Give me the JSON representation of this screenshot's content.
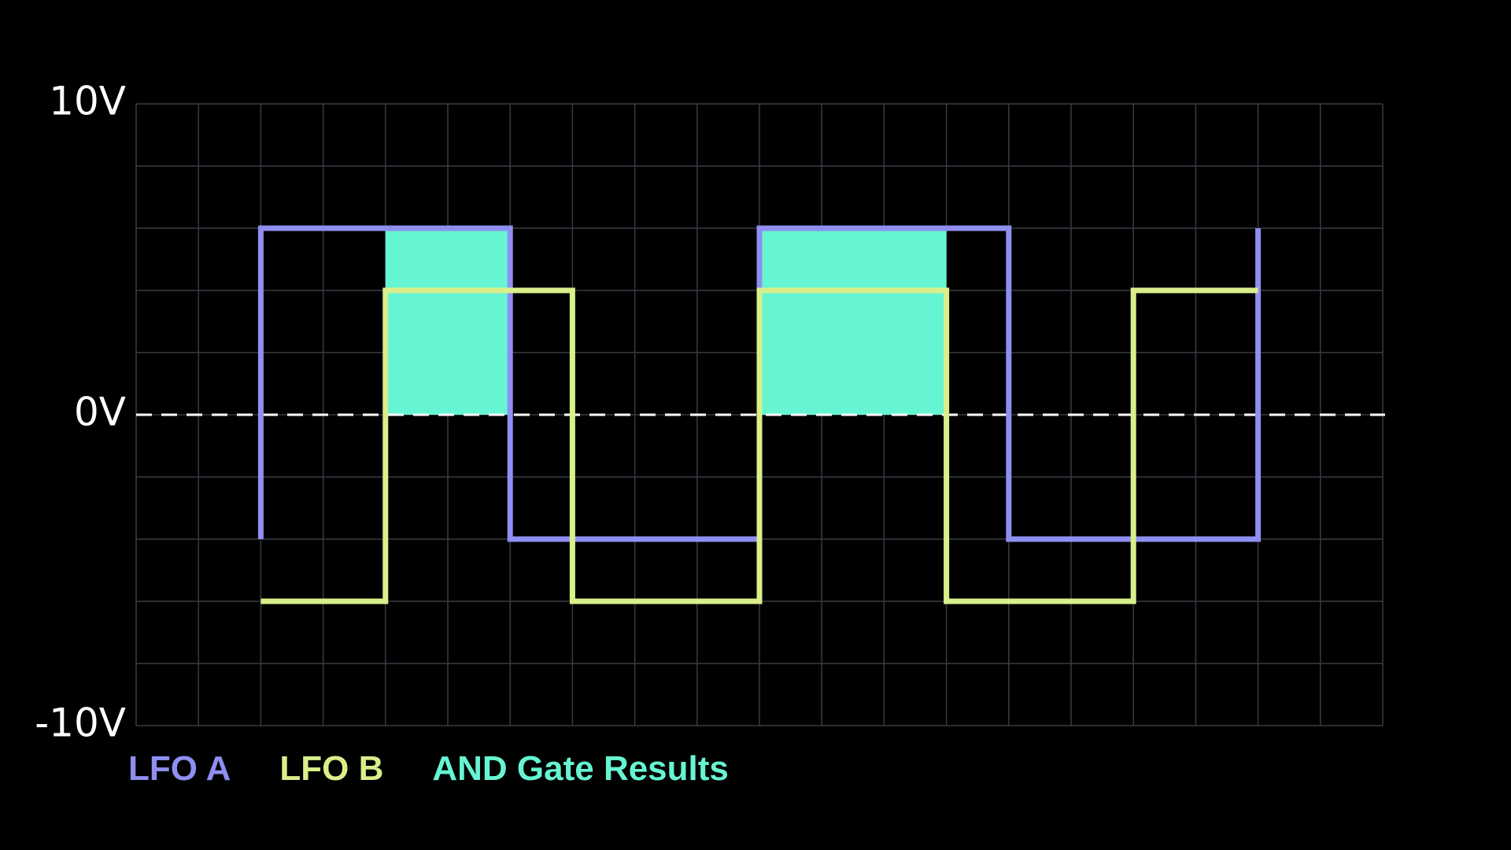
{
  "chart_data": {
    "type": "line",
    "background": "#000000",
    "xlim": [
      0,
      20
    ],
    "xticks": [
      0,
      1,
      2,
      3,
      4,
      5,
      6,
      7,
      8,
      9,
      10,
      11,
      12,
      13,
      14,
      15,
      16,
      17,
      18,
      19,
      20
    ],
    "ylim": [
      -10,
      10
    ],
    "yticks": [
      {
        "value": 10,
        "label": "10V"
      },
      {
        "value": 0,
        "label": "0V"
      },
      {
        "value": -10,
        "label": "-10V"
      }
    ],
    "ygrid": [
      -10,
      -8,
      -6,
      -4,
      -2,
      0,
      2,
      4,
      6,
      8,
      10
    ],
    "grid": true,
    "grid_color": "#3a3a46",
    "series": [
      {
        "name": "LFO A",
        "color": "#8f8ff2",
        "x": [
          2,
          2,
          6,
          6,
          10,
          10,
          14,
          14,
          18,
          18
        ],
        "values": [
          -4,
          6,
          6,
          -4,
          -4,
          6,
          6,
          -4,
          -4,
          6
        ]
      },
      {
        "name": "LFO B",
        "color": "#d9ef8a",
        "x": [
          2,
          4,
          4,
          7,
          7,
          10,
          10,
          13,
          13,
          16,
          16,
          18
        ],
        "values": [
          -6,
          -6,
          4,
          4,
          -6,
          -6,
          4,
          4,
          -6,
          -6,
          4,
          4
        ]
      },
      {
        "name": "AND Gate Results",
        "color": "#66f5d2",
        "type": "area",
        "x_start": [
          4,
          10
        ],
        "x_end": [
          6,
          13
        ],
        "values": [
          6,
          6
        ]
      }
    ]
  }
}
